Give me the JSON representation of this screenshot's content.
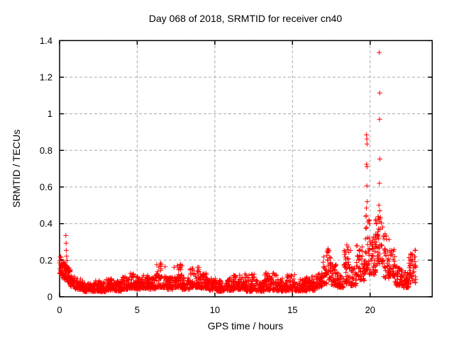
{
  "page": {
    "background": "#ffffff"
  },
  "chart_data": {
    "type": "scatter",
    "title": "Day 068 of 2018, SRMTID for receiver cn40",
    "xlabel": "GPS time / hours",
    "ylabel": "SRMTID / TECUs",
    "xlim": [
      0,
      24
    ],
    "ylim": [
      0,
      1.4
    ],
    "xticks": [
      {
        "value": 0,
        "label": "0"
      },
      {
        "value": 5,
        "label": "5"
      },
      {
        "value": 10,
        "label": "10"
      },
      {
        "value": 15,
        "label": "15"
      },
      {
        "value": 20,
        "label": "20"
      }
    ],
    "yticks": [
      {
        "value": 0.0,
        "label": "0"
      },
      {
        "value": 0.2,
        "label": "0.2"
      },
      {
        "value": 0.4,
        "label": "0.4"
      },
      {
        "value": 0.6,
        "label": "0.6"
      },
      {
        "value": 0.8,
        "label": "0.8"
      },
      {
        "value": 1.0,
        "label": "1"
      },
      {
        "value": 1.2,
        "label": "1.2"
      },
      {
        "value": 1.4,
        "label": "1.4"
      }
    ],
    "grid": true,
    "grid_color": "#a8a8a8",
    "axis_color": "#000000",
    "legend": null,
    "marker": {
      "shape": "plus",
      "color": "#ff0000",
      "size": 7
    },
    "series_name": "SRMTID",
    "data_time_range_hours": [
      0,
      22.95
    ],
    "max_point": [
      20.59,
      1.335
    ],
    "band_segments": {
      "format": [
        "t_start",
        "t_end",
        "v_min",
        "v_max",
        "count",
        "low_bias"
      ],
      "segments": [
        [
          0.0,
          0.1,
          0.12,
          0.22,
          14,
          1.2
        ],
        [
          0.1,
          0.3,
          0.1,
          0.2,
          26,
          1.3
        ],
        [
          0.3,
          0.5,
          0.09,
          0.2,
          26,
          1.3
        ],
        [
          0.5,
          0.7,
          0.08,
          0.16,
          24,
          1.4
        ],
        [
          0.7,
          1.0,
          0.055,
          0.12,
          34,
          1.4
        ],
        [
          1.0,
          1.5,
          0.04,
          0.1,
          55,
          1.6
        ],
        [
          1.5,
          2.2,
          0.028,
          0.075,
          75,
          1.6
        ],
        [
          2.2,
          2.6,
          0.03,
          0.09,
          44,
          1.7
        ],
        [
          2.6,
          3.0,
          0.028,
          0.08,
          44,
          1.7
        ],
        [
          3.0,
          3.5,
          0.035,
          0.1,
          55,
          1.7
        ],
        [
          3.5,
          4.0,
          0.03,
          0.09,
          55,
          1.7
        ],
        [
          4.0,
          4.4,
          0.04,
          0.11,
          44,
          1.7
        ],
        [
          4.4,
          4.8,
          0.045,
          0.13,
          44,
          1.8
        ],
        [
          4.8,
          5.2,
          0.04,
          0.11,
          44,
          1.7
        ],
        [
          5.2,
          5.7,
          0.045,
          0.12,
          55,
          1.7
        ],
        [
          5.7,
          6.2,
          0.04,
          0.11,
          55,
          1.7
        ],
        [
          6.2,
          6.8,
          0.05,
          0.185,
          62,
          2.0
        ],
        [
          6.8,
          7.3,
          0.04,
          0.11,
          55,
          1.7
        ],
        [
          7.3,
          7.9,
          0.05,
          0.18,
          62,
          2.0
        ],
        [
          7.9,
          8.4,
          0.04,
          0.11,
          55,
          1.7
        ],
        [
          8.4,
          9.1,
          0.05,
          0.165,
          70,
          2.0
        ],
        [
          9.1,
          9.6,
          0.045,
          0.13,
          52,
          1.8
        ],
        [
          9.6,
          10.1,
          0.035,
          0.1,
          52,
          1.7
        ],
        [
          10.1,
          10.7,
          0.03,
          0.09,
          62,
          1.7
        ],
        [
          10.7,
          11.2,
          0.035,
          0.105,
          52,
          1.7
        ],
        [
          11.2,
          11.9,
          0.04,
          0.12,
          70,
          1.8
        ],
        [
          11.9,
          12.6,
          0.03,
          0.125,
          70,
          1.8
        ],
        [
          12.6,
          13.2,
          0.03,
          0.09,
          62,
          1.7
        ],
        [
          13.2,
          14.0,
          0.035,
          0.13,
          80,
          1.8
        ],
        [
          14.0,
          14.6,
          0.03,
          0.1,
          62,
          1.7
        ],
        [
          14.6,
          15.2,
          0.035,
          0.125,
          62,
          1.8
        ],
        [
          15.2,
          15.9,
          0.03,
          0.1,
          70,
          1.7
        ],
        [
          15.9,
          16.5,
          0.035,
          0.11,
          62,
          1.7
        ],
        [
          16.5,
          16.9,
          0.05,
          0.13,
          40,
          1.6
        ],
        [
          16.9,
          17.2,
          0.07,
          0.22,
          30,
          1.5
        ],
        [
          17.2,
          17.5,
          0.09,
          0.27,
          30,
          1.4
        ],
        [
          17.5,
          17.9,
          0.06,
          0.18,
          40,
          1.5
        ],
        [
          17.9,
          18.3,
          0.05,
          0.13,
          40,
          1.5
        ],
        [
          18.3,
          18.75,
          0.07,
          0.285,
          45,
          1.6
        ],
        [
          18.75,
          19.1,
          0.06,
          0.16,
          34,
          1.5
        ],
        [
          19.1,
          19.5,
          0.09,
          0.285,
          40,
          1.5
        ],
        [
          19.5,
          19.7,
          0.08,
          0.2,
          20,
          1.4
        ],
        [
          19.7,
          19.95,
          0.14,
          0.46,
          30,
          1.5
        ],
        [
          19.95,
          20.35,
          0.12,
          0.33,
          40,
          1.5
        ],
        [
          20.35,
          20.85,
          0.17,
          0.44,
          50,
          1.4
        ],
        [
          20.85,
          21.25,
          0.1,
          0.35,
          40,
          1.6
        ],
        [
          21.25,
          21.6,
          0.11,
          0.26,
          34,
          1.5
        ],
        [
          21.6,
          22.1,
          0.06,
          0.17,
          48,
          1.5
        ],
        [
          22.1,
          22.5,
          0.05,
          0.14,
          40,
          1.5
        ],
        [
          22.5,
          22.95,
          0.075,
          0.26,
          44,
          1.4
        ]
      ]
    },
    "outlier_points": [
      [
        0.4,
        0.335
      ],
      [
        0.42,
        0.293
      ],
      [
        0.43,
        0.254
      ],
      [
        0.45,
        0.222
      ],
      [
        18.5,
        0.283
      ],
      [
        19.77,
        0.885
      ],
      [
        19.79,
        0.862
      ],
      [
        19.8,
        0.835
      ],
      [
        19.78,
        0.724
      ],
      [
        19.8,
        0.711
      ],
      [
        19.79,
        0.606
      ],
      [
        19.81,
        0.52
      ],
      [
        19.76,
        0.485
      ],
      [
        19.93,
        0.42
      ],
      [
        19.96,
        0.4
      ],
      [
        20.59,
        1.335
      ],
      [
        20.62,
        1.114
      ],
      [
        20.61,
        0.97
      ],
      [
        20.63,
        0.753
      ],
      [
        20.6,
        0.62
      ],
      [
        20.57,
        0.5
      ],
      [
        20.62,
        0.47
      ],
      [
        20.55,
        0.43
      ],
      [
        20.64,
        0.425
      ]
    ]
  }
}
